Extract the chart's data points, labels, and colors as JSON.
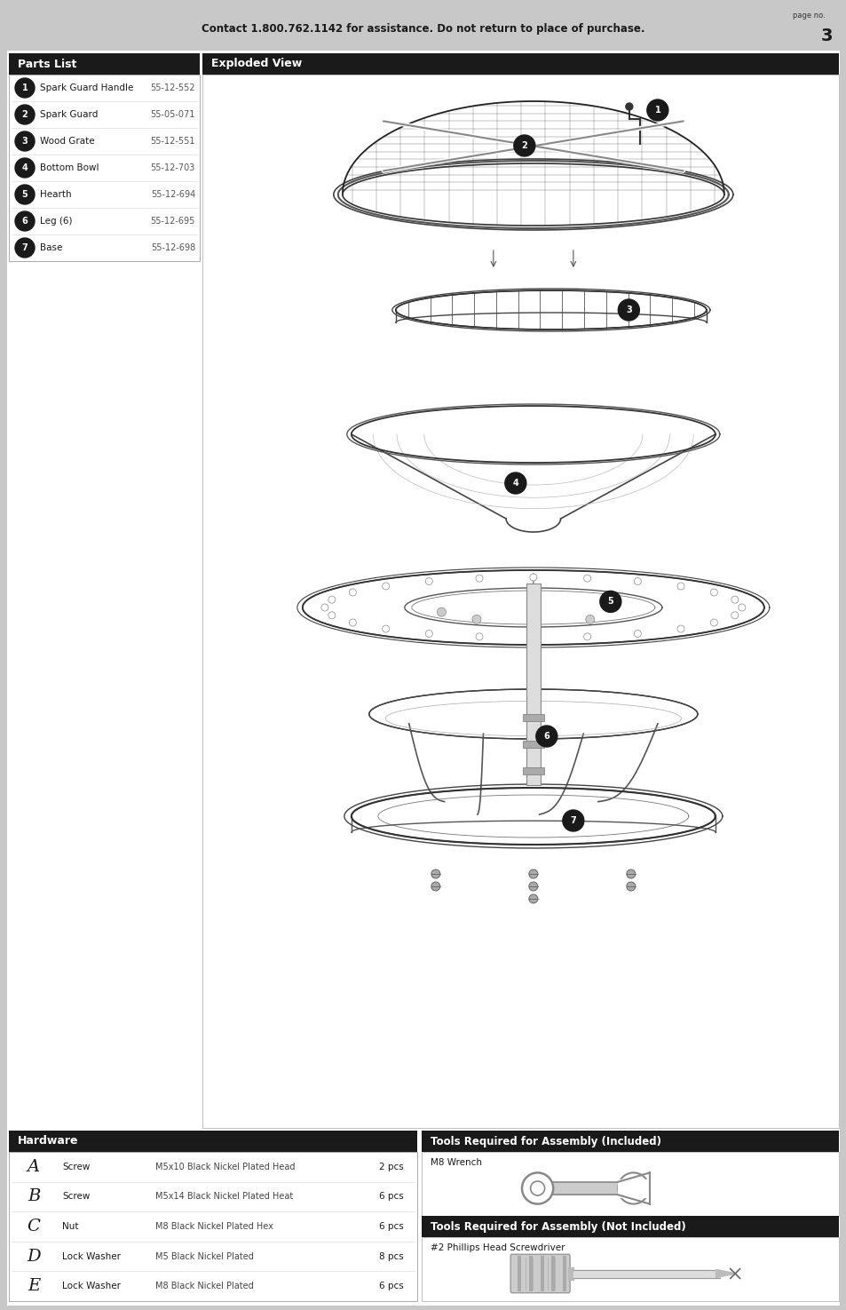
{
  "page_bg": "#c8c8c8",
  "content_bg": "#ffffff",
  "header_text": "Contact 1.800.762.1142 for assistance. Do not return to place of purchase.",
  "page_no_label": "page no.",
  "page_no": "3",
  "parts_list_title": "Parts List",
  "header_bg": "#1a1a1a",
  "header_fg": "#ffffff",
  "parts": [
    {
      "num": "1",
      "name": "Spark Guard Handle",
      "code": "55-12-552"
    },
    {
      "num": "2",
      "name": "Spark Guard",
      "code": "55-05-071"
    },
    {
      "num": "3",
      "name": "Wood Grate",
      "code": "55-12-551"
    },
    {
      "num": "4",
      "name": "Bottom Bowl",
      "code": "55-12-703"
    },
    {
      "num": "5",
      "name": "Hearth",
      "code": "55-12-694"
    },
    {
      "num": "6",
      "name": "Leg (6)",
      "code": "55-12-695"
    },
    {
      "num": "7",
      "name": "Base",
      "code": "55-12-698"
    }
  ],
  "exploded_view_title": "Exploded View",
  "hardware_title": "Hardware",
  "hardware_items": [
    {
      "letter": "A",
      "type": "Screw",
      "desc": "M5x10 Black Nickel Plated Head",
      "qty": "2 pcs"
    },
    {
      "letter": "B",
      "type": "Screw",
      "desc": "M5x14 Black Nickel Plated Heat",
      "qty": "6 pcs"
    },
    {
      "letter": "C",
      "type": "Nut",
      "desc": "M8 Black Nickel Plated Hex",
      "qty": "6 pcs"
    },
    {
      "letter": "D",
      "type": "Lock Washer",
      "desc": "M5 Black Nickel Plated",
      "qty": "8 pcs"
    },
    {
      "letter": "E",
      "type": "Lock Washer",
      "desc": "M8 Black Nickel Plated",
      "qty": "6 pcs"
    }
  ],
  "tools_included_title": "Tools Required for Assembly (Included)",
  "tools_included_item": "M8 Wrench",
  "tools_not_included_title": "Tools Required for Assembly (Not Included)",
  "tools_not_included_item": "#2 Phillips Head Screwdriver"
}
